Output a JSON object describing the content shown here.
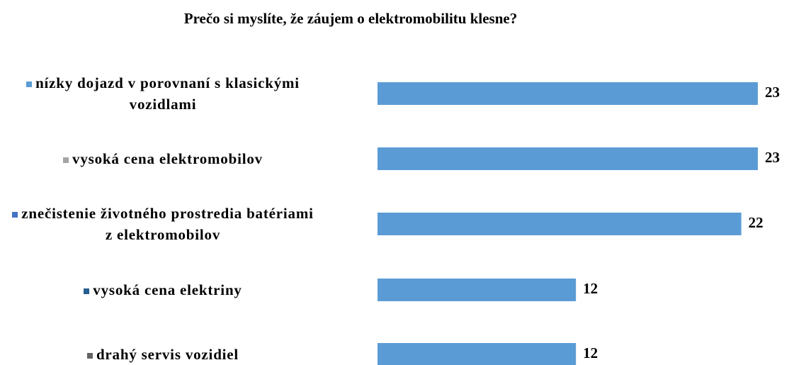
{
  "chart_data": {
    "type": "bar",
    "orientation": "horizontal",
    "title": "Prečo si myslíte, že záujem o elektromobilitu klesne?",
    "categories": [
      "nízky dojazd v porovnaní s klasickými vozidlami",
      "vysoká cena elektromobilov",
      "znečistenie životného prostredia batériami z elektromobilov",
      "vysoká cena elektriny",
      "drahý servis vozidiel"
    ],
    "values": [
      23,
      23,
      22,
      12,
      12
    ],
    "color": "#5b9bd5",
    "legend_colors": [
      "#5b9bd5",
      "#a5a5a5",
      "#4472c4",
      "#255e91",
      "#636363"
    ]
  }
}
